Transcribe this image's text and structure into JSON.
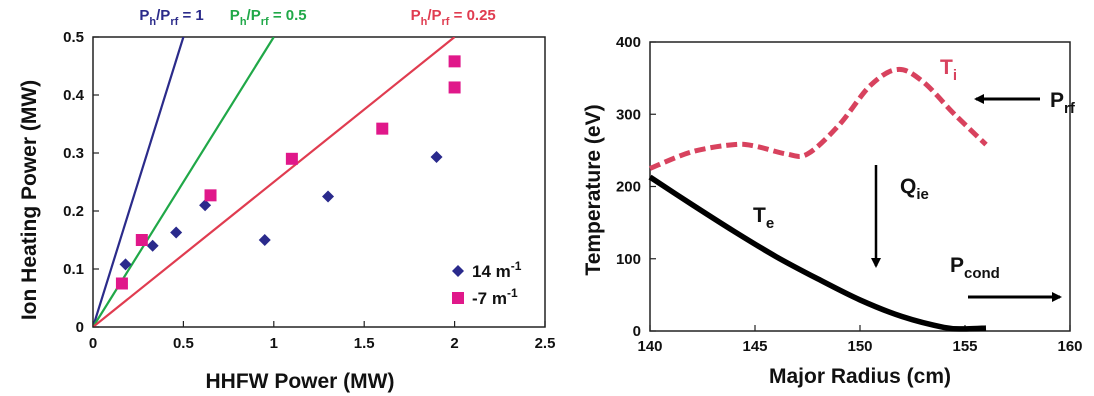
{
  "chart_data": [
    {
      "type": "scatter",
      "title": "",
      "xlabel": "HHFW Power (MW)",
      "ylabel": "Ion Heating Power (MW)",
      "xlim": [
        0,
        2.5
      ],
      "ylim": [
        0,
        0.5
      ],
      "xticks": [
        "0",
        "0.5",
        "1",
        "1.5",
        "2",
        "2.5"
      ],
      "yticks": [
        "0",
        "0.1",
        "0.2",
        "0.3",
        "0.4",
        "0.5"
      ],
      "grid": false,
      "legend_position": "bottom-right",
      "series": [
        {
          "name": "14 m-1",
          "name_main": "14 m",
          "name_sup": "-1",
          "marker": "diamond",
          "color": "#2a2a8c",
          "points": [
            [
              0.18,
              0.108
            ],
            [
              0.33,
              0.14
            ],
            [
              0.46,
              0.163
            ],
            [
              0.62,
              0.21
            ],
            [
              0.95,
              0.15
            ],
            [
              1.3,
              0.225
            ],
            [
              1.9,
              0.293
            ]
          ]
        },
        {
          "name": "-7 m-1",
          "name_main": "-7 m",
          "name_sup": "-1",
          "marker": "square",
          "color": "#e0188a",
          "points": [
            [
              0.16,
              0.075
            ],
            [
              0.27,
              0.15
            ],
            [
              0.65,
              0.227
            ],
            [
              1.1,
              0.29
            ],
            [
              1.6,
              0.342
            ],
            [
              2.0,
              0.413
            ],
            [
              2.0,
              0.458
            ]
          ]
        }
      ],
      "ratio_lines": [
        {
          "label_main": "P",
          "label_sub1": "h",
          "label_mid": "/P",
          "label_sub2": "rf",
          "label_end": " = 1",
          "slope": 1,
          "color": "#2b2b8a"
        },
        {
          "label_main": "P",
          "label_sub1": "h",
          "label_mid": "/P",
          "label_sub2": "rf",
          "label_end": " = 0.5",
          "slope": 0.5,
          "color": "#20a848"
        },
        {
          "label_main": "P",
          "label_sub1": "h",
          "label_mid": "/P",
          "label_sub2": "rf",
          "label_end": " = 0.25",
          "slope": 0.25,
          "color": "#e03c50"
        }
      ]
    },
    {
      "type": "line",
      "title": "",
      "xlabel": "Major Radius (cm)",
      "ylabel": "Temperature (eV)",
      "xlim": [
        140,
        160
      ],
      "ylim": [
        0,
        400
      ],
      "xticks": [
        "140",
        "145",
        "150",
        "155",
        "160"
      ],
      "yticks": [
        "0",
        "100",
        "200",
        "300",
        "400"
      ],
      "grid": false,
      "series": [
        {
          "name": "Ti",
          "label_main": "T",
          "label_sub": "i",
          "style": "dashed",
          "color": "#d8425e",
          "x": [
            140,
            142,
            144,
            145,
            146.5,
            147.5,
            149,
            150.5,
            151.8,
            153,
            154.5,
            156
          ],
          "y": [
            225,
            248,
            258,
            256,
            245,
            245,
            285,
            340,
            362,
            345,
            300,
            258
          ]
        },
        {
          "name": "Te",
          "label_main": "T",
          "label_sub": "e",
          "style": "solid",
          "color": "#000000",
          "x": [
            140,
            142,
            144,
            146,
            148,
            150,
            152,
            154,
            155,
            156
          ],
          "y": [
            213,
            175,
            138,
            103,
            72,
            43,
            20,
            5,
            3,
            4
          ]
        }
      ],
      "annotations": [
        {
          "main": "P",
          "sub": "rf"
        },
        {
          "main": "Q",
          "sub": "ie"
        },
        {
          "main": "P",
          "sub": "cond"
        }
      ]
    }
  ]
}
